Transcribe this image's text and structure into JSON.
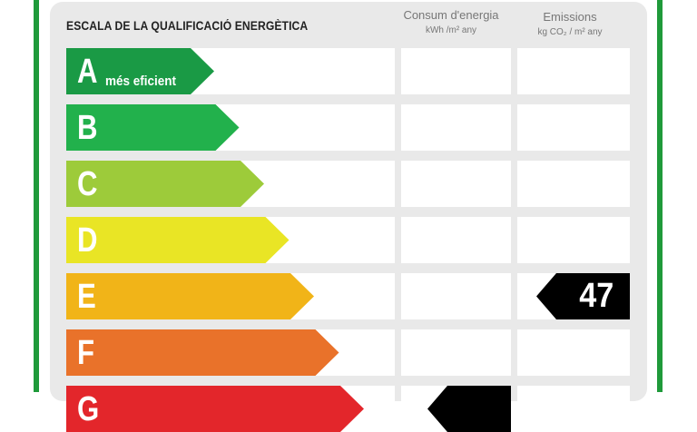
{
  "header": {
    "title": "ESCALA DE LA QUALIFICACIÓ ENERGÈTICA",
    "energy_col_title": "Consum d'energia",
    "energy_col_unit": "kWh /m² any",
    "emissions_col_title": "Emissions",
    "emissions_col_unit": "kg CO₂ / m² any"
  },
  "ratings": [
    {
      "letter": "A",
      "sub": "més eficient",
      "color": "#1a9a45"
    },
    {
      "letter": "B",
      "sub": "",
      "color": "#22b14c"
    },
    {
      "letter": "C",
      "sub": "",
      "color": "#9dcb3a"
    },
    {
      "letter": "D",
      "sub": "",
      "color": "#e9e525"
    },
    {
      "letter": "E",
      "sub": "",
      "color": "#f1b418"
    },
    {
      "letter": "F",
      "sub": "",
      "color": "#e9722a"
    },
    {
      "letter": "G",
      "sub": "",
      "color": "#e3262b"
    }
  ],
  "emissions_value": {
    "rating": "E",
    "value": "47"
  },
  "energy_value": {
    "rating": "G",
    "value": ""
  },
  "colors": {
    "frame": "#1f9a3a",
    "panel": "#e9e9e9",
    "tag": "#000000"
  }
}
